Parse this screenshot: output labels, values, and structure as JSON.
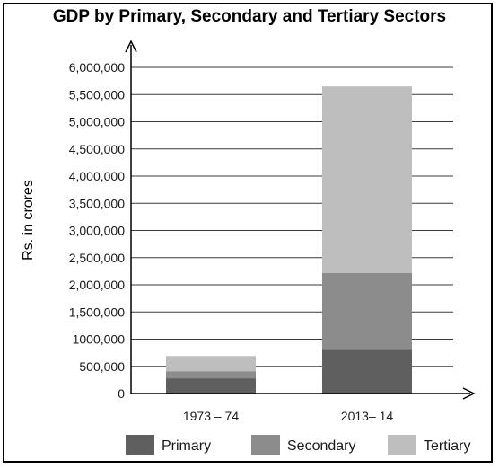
{
  "chart_data": {
    "type": "bar",
    "stacked": true,
    "title": "GDP by Primary, Secondary and Tertiary Sectors",
    "xlabel": "",
    "ylabel": "Rs. in crores",
    "ylim": [
      0,
      6000000
    ],
    "y_ticks": [
      0,
      500000,
      1000000,
      1500000,
      2000000,
      2500000,
      3000000,
      3500000,
      4000000,
      4500000,
      5000000,
      5500000,
      6000000
    ],
    "y_tick_labels": [
      "0",
      "500,000",
      "1000,000",
      "1,500,000",
      "2,000,000",
      "2,500,000",
      "3,000,000",
      "3,500,000",
      "4,000,000",
      "4,500,000",
      "5,000,000",
      "5,500,000",
      "6,000,000"
    ],
    "categories": [
      "1973 – 74",
      "2013– 14"
    ],
    "series": [
      {
        "name": "Primary",
        "values": [
          280000,
          820000
        ],
        "color": "#5f5f5f"
      },
      {
        "name": "Secondary",
        "values": [
          130000,
          1400000
        ],
        "color": "#8c8c8c"
      },
      {
        "name": "Tertiary",
        "values": [
          280000,
          3430000
        ],
        "color": "#bebebe"
      }
    ],
    "grid": true,
    "legend_position": "bottom"
  }
}
